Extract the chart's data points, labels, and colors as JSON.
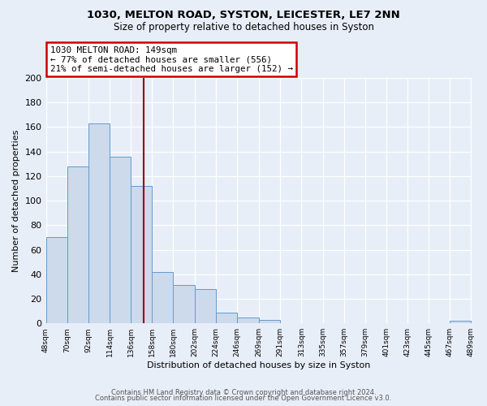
{
  "title": "1030, MELTON ROAD, SYSTON, LEICESTER, LE7 2NN",
  "subtitle": "Size of property relative to detached houses in Syston",
  "xlabel": "Distribution of detached houses by size in Syston",
  "ylabel": "Number of detached properties",
  "bin_edges": [
    48,
    70,
    92,
    114,
    136,
    158,
    180,
    202,
    224,
    246,
    269,
    291,
    313,
    335,
    357,
    379,
    401,
    423,
    445,
    467,
    489
  ],
  "bar_heights": [
    70,
    128,
    163,
    136,
    112,
    42,
    31,
    28,
    9,
    5,
    3,
    0,
    0,
    0,
    0,
    0,
    0,
    0,
    0,
    2
  ],
  "bar_color": "#ccdaec",
  "bar_edge_color": "#6699cc",
  "property_size": 149,
  "vline_color": "#990000",
  "annotation_line1": "1030 MELTON ROAD: 149sqm",
  "annotation_line2": "← 77% of detached houses are smaller (556)",
  "annotation_line3": "21% of semi-detached houses are larger (152) →",
  "annotation_bbox_facecolor": "white",
  "annotation_bbox_edgecolor": "#cc0000",
  "ylim": [
    0,
    200
  ],
  "yticks": [
    0,
    20,
    40,
    60,
    80,
    100,
    120,
    140,
    160,
    180,
    200
  ],
  "tick_labels": [
    "48sqm",
    "70sqm",
    "92sqm",
    "114sqm",
    "136sqm",
    "158sqm",
    "180sqm",
    "202sqm",
    "224sqm",
    "246sqm",
    "269sqm",
    "291sqm",
    "313sqm",
    "335sqm",
    "357sqm",
    "379sqm",
    "401sqm",
    "423sqm",
    "445sqm",
    "467sqm",
    "489sqm"
  ],
  "footer_line1": "Contains HM Land Registry data © Crown copyright and database right 2024.",
  "footer_line2": "Contains public sector information licensed under the Open Government Licence v3.0.",
  "bg_color": "#e8eef8",
  "plot_bg_color": "#e8eef8",
  "grid_color": "#c8d0dc"
}
